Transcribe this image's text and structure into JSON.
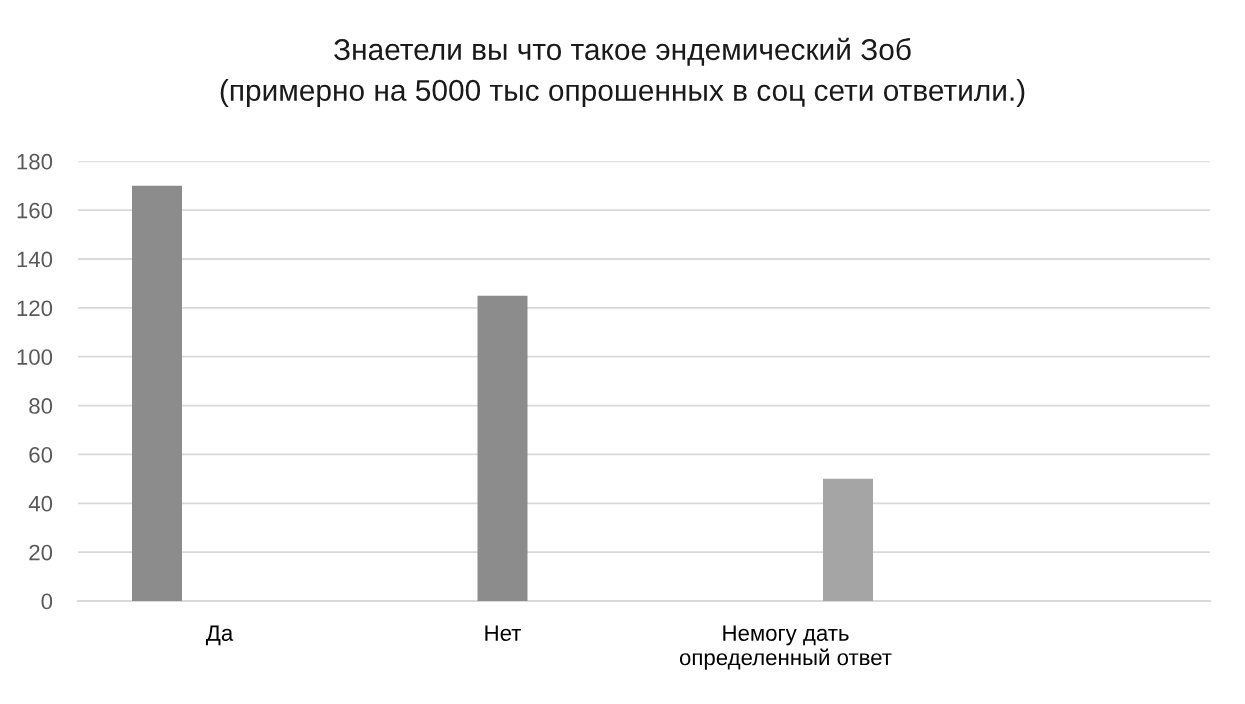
{
  "chart_data": {
    "type": "bar",
    "title": "Знаетели вы что такое эндемический Зоб",
    "subtitle": "(примерно на 5000 тыс опрошенных в соц сети ответили.)",
    "categories": [
      "Да",
      "Нет",
      "Немогу дать определенный ответ",
      null
    ],
    "series": [
      {
        "color": "#8c8c8c",
        "values": [
          170,
          null,
          null,
          null
        ]
      },
      {
        "color": "#8c8c8c",
        "values": [
          null,
          125,
          null,
          null
        ]
      },
      {
        "color": "#a5a5a5",
        "values": [
          null,
          null,
          50,
          null
        ]
      }
    ],
    "ylim": [
      0,
      180
    ],
    "yticks": [
      0,
      20,
      40,
      60,
      80,
      100,
      120,
      140,
      160,
      180
    ],
    "grid": "y"
  }
}
